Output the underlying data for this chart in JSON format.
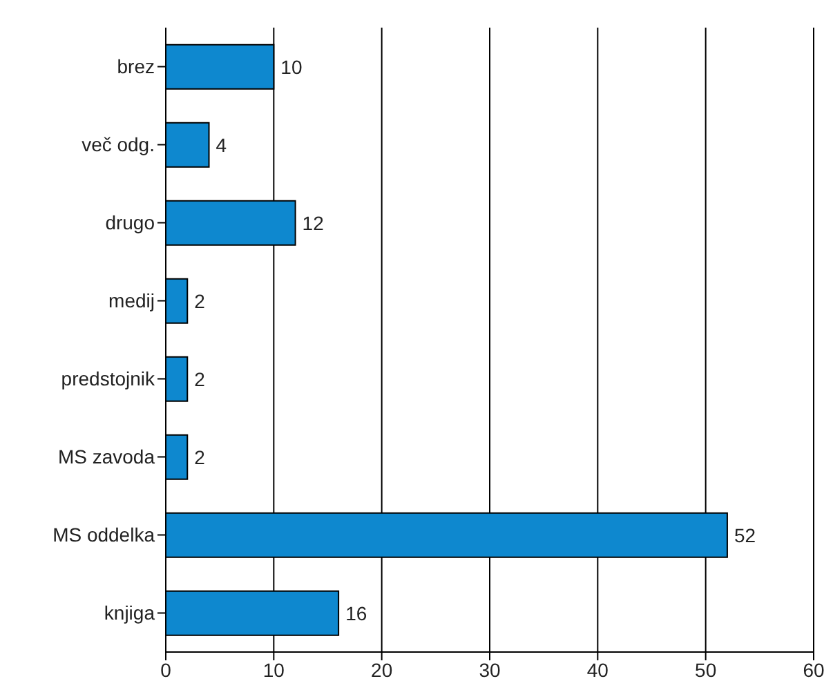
{
  "chart_data": {
    "type": "bar",
    "orientation": "horizontal",
    "categories": [
      "brez",
      "več odg.",
      "drugo",
      "medij",
      "predstojnik",
      "MS zavoda",
      "MS oddelka",
      "knjiga"
    ],
    "values": [
      10,
      4,
      12,
      2,
      2,
      2,
      52,
      16
    ],
    "color": "#0e88cf",
    "xlim": [
      0,
      60
    ],
    "xticks": [
      0,
      10,
      20,
      30,
      40,
      50,
      60
    ],
    "grid": "x",
    "data_labels": true
  }
}
